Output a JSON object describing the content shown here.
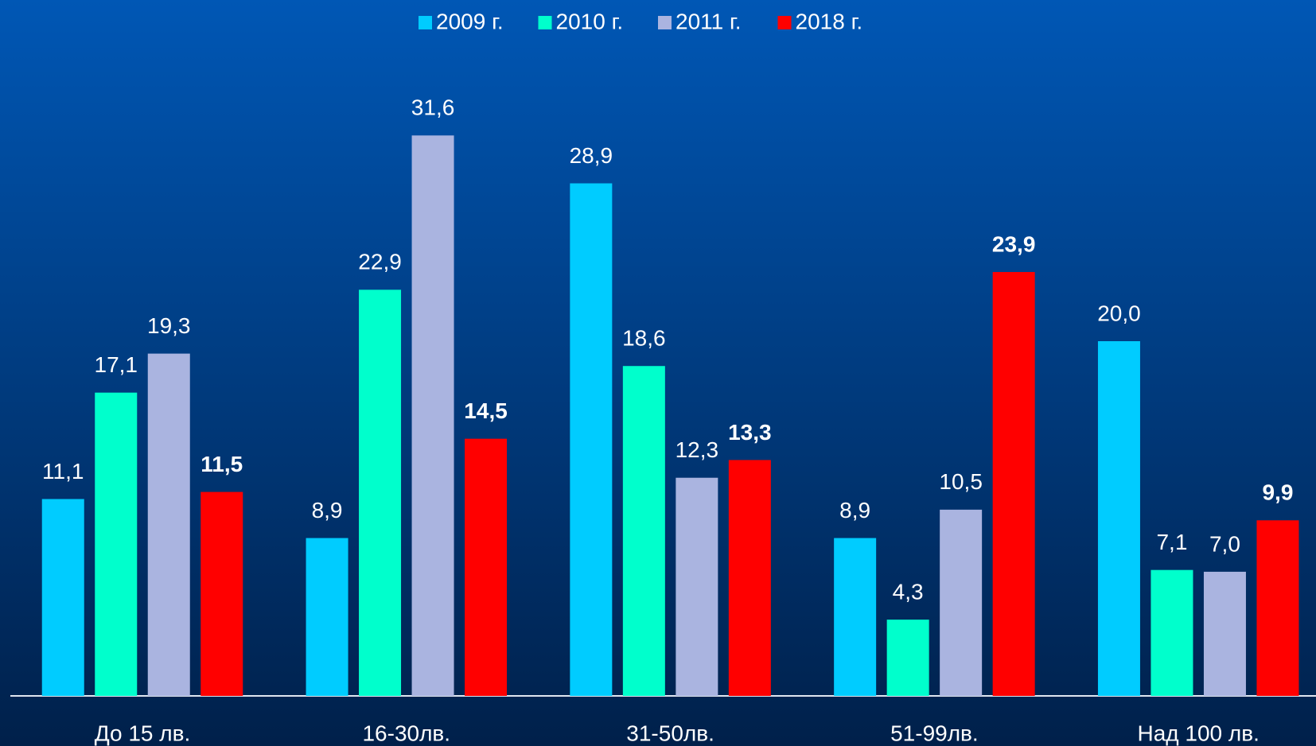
{
  "chart_data": {
    "type": "bar",
    "categories": [
      "До 15 лв.",
      "16-30лв.",
      "31-50лв.",
      "51-99лв.",
      "Над 100 лв."
    ],
    "series": [
      {
        "name": "2009 г.",
        "color": "#00ccff",
        "values": [
          11.1,
          8.9,
          28.9,
          8.9,
          20.0
        ],
        "value_labels": [
          "11,1",
          "8,9",
          "28,9",
          "8,9",
          "20,0"
        ]
      },
      {
        "name": "2010 г.",
        "color": "#00ffcc",
        "values": [
          17.1,
          22.9,
          18.6,
          4.3,
          7.1
        ],
        "value_labels": [
          "17,1",
          "22,9",
          "18,6",
          "4,3",
          "7,1"
        ]
      },
      {
        "name": "2011 г.",
        "color": "#aab4e0",
        "values": [
          19.3,
          31.6,
          12.3,
          10.5,
          7.0
        ],
        "value_labels": [
          "19,3",
          "31,6",
          "12,3",
          "10,5",
          "7,0"
        ]
      },
      {
        "name": "2018 г.",
        "color": "#ff0000",
        "values": [
          11.5,
          14.5,
          13.3,
          23.9,
          9.9
        ],
        "value_labels": [
          "11,5",
          "14,5",
          "13,3",
          "23,9",
          "9,9"
        ]
      }
    ]
  }
}
